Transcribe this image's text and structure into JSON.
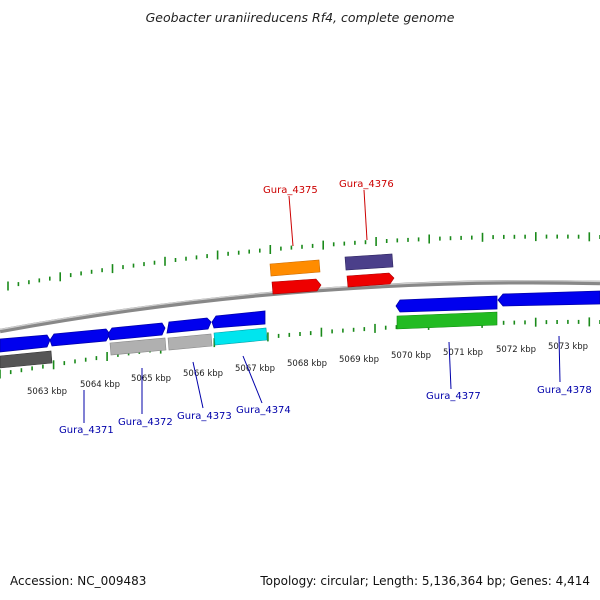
{
  "title": "Geobacter uraniireducens Rf4, complete genome",
  "footer": {
    "accession": "Accession: NC_009483",
    "summary": "Topology: circular; Length: 5,136,364 bp; Genes: 4,414"
  },
  "colors": {
    "tick_green": "#1a8a1a",
    "label_red": "#cc0000",
    "label_blue": "#0000aa",
    "backbone": "#888888",
    "blue": "#0000ee",
    "red": "#ee0000",
    "orange": "#ff8c00",
    "slate": "#4b3f8a",
    "grey": "#b0b0b0",
    "dark_grey": "#555555",
    "cyan": "#00e5ee",
    "green": "#22bb22"
  },
  "kbp_labels": [
    "5063 kbp",
    "5064 kbp",
    "5065 kbp",
    "5066 kbp",
    "5067 kbp",
    "5068 kbp",
    "5069 kbp",
    "5070 kbp",
    "5071 kbp",
    "5072 kbp",
    "5073 kbp"
  ],
  "gene_labels": {
    "top": [
      "Gura_4375",
      "Gura_4376"
    ],
    "bottom": [
      "Gura_4371",
      "Gura_4372",
      "Gura_4373",
      "Gura_4374",
      "Gura_4377",
      "Gura_4378"
    ]
  }
}
